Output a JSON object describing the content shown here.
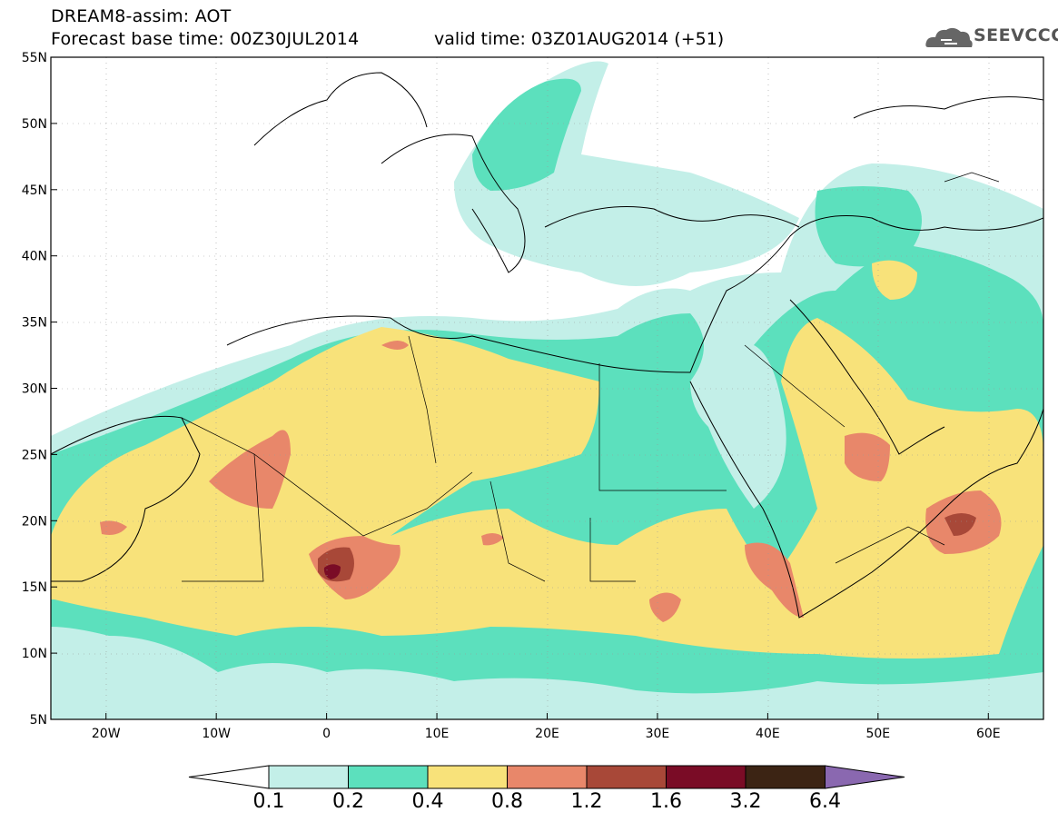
{
  "header": {
    "title_line1": "DREAM8-assim: AOT",
    "title_line2": "Forecast base time: 00Z30JUL2014",
    "valid_time": "valid time: 03Z01AUG2014 (+51)",
    "logo_text": "SEEVCCC"
  },
  "axes": {
    "lat_labels": [
      "55N",
      "50N",
      "45N",
      "40N",
      "35N",
      "30N",
      "25N",
      "20N",
      "15N",
      "10N",
      "5N"
    ],
    "lon_labels": [
      "20W",
      "10W",
      "0",
      "10E",
      "20E",
      "30E",
      "40E",
      "50E",
      "60E"
    ],
    "lon_range": [
      -25,
      65
    ],
    "lat_range": [
      5,
      55
    ]
  },
  "colorbar": {
    "labels": [
      "0.1",
      "0.2",
      "0.4",
      "0.8",
      "1.2",
      "1.6",
      "3.2",
      "6.4"
    ],
    "colors": [
      "#ffffff",
      "#c3efe8",
      "#5ce0bd",
      "#f8e27a",
      "#e8876a",
      "#a84838",
      "#7a0c26",
      "#3c2414",
      "#8a68b0"
    ]
  },
  "colors": {
    "light_cyan": "#c3efe8",
    "teal": "#5ce0bd",
    "yellow": "#f8e27a",
    "orange": "#e8876a",
    "brown": "#a84838",
    "dark_red": "#7a0c26"
  }
}
